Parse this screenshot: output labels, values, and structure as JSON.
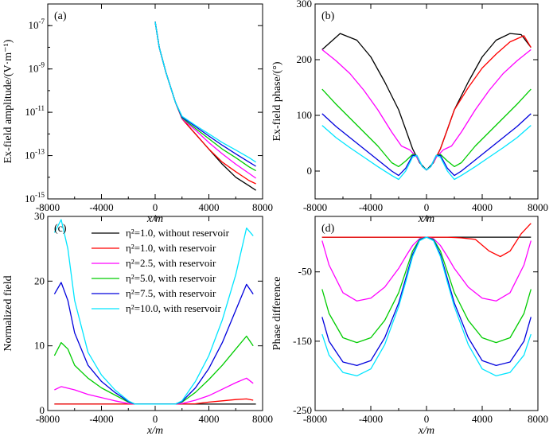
{
  "figure": {
    "xlabel": "x/m",
    "x_ticks": [
      "-8000",
      "-4000",
      "0",
      "4000",
      "8000"
    ],
    "legend": [
      {
        "label": "η²=1.0, without reservoir",
        "color": "#000000"
      },
      {
        "label": "η²=1.0, with reservoir",
        "color": "#ff0000"
      },
      {
        "label": "η²=2.5, with reservoir",
        "color": "#ff00ff"
      },
      {
        "label": "η²=5.0, with reservoir",
        "color": "#00cc00"
      },
      {
        "label": "η²=7.5, with reservoir",
        "color": "#0000dd"
      },
      {
        "label": "η²=10.0, with reservoir",
        "color": "#00e5ff"
      }
    ]
  },
  "chart_data": [
    {
      "panel": "(a)",
      "type": "line",
      "ylabel": "Ex-field amplitude/(V·m⁻¹)",
      "yscale": "log",
      "xlim": [
        -8000,
        8000
      ],
      "ylim": [
        1e-15,
        1e-06
      ],
      "y_ticks": [
        {
          "base": "10",
          "exp": "-7",
          "v": 1e-07
        },
        {
          "base": "10",
          "exp": "-9",
          "v": 1e-09
        },
        {
          "base": "10",
          "exp": "-11",
          "v": 1e-11
        },
        {
          "base": "10",
          "exp": "-13",
          "v": 1e-13
        },
        {
          "base": "10",
          "exp": "-15",
          "v": 1e-15
        }
      ],
      "series": [
        {
          "name": "η²=1.0, without reservoir",
          "color": "#000000",
          "x": [
            0,
            300,
            800,
            1500,
            2000,
            3000,
            4000,
            5000,
            6000,
            7000,
            7500
          ],
          "y": [
            1.5e-07,
            1e-08,
            7e-10,
            3e-11,
            5e-12,
            1e-12,
            2e-13,
            4e-14,
            1e-14,
            4e-15,
            2.5e-15
          ]
        },
        {
          "name": "η²=1.0, with reservoir",
          "color": "#ff0000",
          "x": [
            0,
            300,
            800,
            1500,
            2000,
            3000,
            4000,
            5000,
            6000,
            7000,
            7500
          ],
          "y": [
            1.5e-07,
            1e-08,
            7e-10,
            3e-11,
            5e-12,
            1e-12,
            2e-13,
            5e-14,
            1.8e-14,
            7e-15,
            5e-15
          ]
        },
        {
          "name": "η²=2.5, with reservoir",
          "color": "#ff00ff",
          "x": [
            0,
            300,
            800,
            1500,
            2000,
            3000,
            4000,
            5000,
            6000,
            7000,
            7500
          ],
          "y": [
            1.5e-07,
            1e-08,
            7e-10,
            3e-11,
            5e-12,
            1.5e-12,
            4e-13,
            1.2e-13,
            4e-14,
            1.5e-14,
            9e-15
          ]
        },
        {
          "name": "η²=5.0, with reservoir",
          "color": "#00cc00",
          "x": [
            0,
            300,
            800,
            1500,
            2000,
            3000,
            4000,
            5000,
            6000,
            7000,
            7500
          ],
          "y": [
            1.5e-07,
            1e-08,
            7e-10,
            3e-11,
            5.5e-12,
            1.8e-12,
            6e-13,
            2e-13,
            8e-14,
            3e-14,
            2e-14
          ]
        },
        {
          "name": "η²=7.5, with reservoir",
          "color": "#0000dd",
          "x": [
            0,
            300,
            800,
            1500,
            2000,
            3000,
            4000,
            5000,
            6000,
            7000,
            7500
          ],
          "y": [
            1.5e-07,
            1e-08,
            7e-10,
            3e-11,
            6e-12,
            2.2e-12,
            8e-13,
            3e-13,
            1.2e-13,
            5e-14,
            3.2e-14
          ]
        },
        {
          "name": "η²=10.0, with reservoir",
          "color": "#00e5ff",
          "x": [
            0,
            300,
            800,
            1500,
            2000,
            3000,
            4000,
            5000,
            6000,
            7000,
            7500
          ],
          "y": [
            1.5e-07,
            1e-08,
            7e-10,
            3e-11,
            6.5e-12,
            2.5e-12,
            1e-12,
            4e-13,
            1.8e-13,
            8e-14,
            5e-14
          ]
        }
      ]
    },
    {
      "panel": "(b)",
      "type": "line",
      "ylabel": "Ex-field phase/(°)",
      "yscale": "linear",
      "xlim": [
        -8000,
        8000
      ],
      "ylim": [
        -50,
        300
      ],
      "y_ticks": [
        {
          "label": "300",
          "v": 300
        },
        {
          "label": "200",
          "v": 200
        },
        {
          "label": "100",
          "v": 100
        },
        {
          "label": "0",
          "v": 0
        }
      ],
      "series": [
        {
          "name": "η²=1.0, without reservoir",
          "color": "#000000",
          "right": false,
          "x": [
            -7500,
            -6200,
            -5000,
            -4000,
            -3000,
            -2000,
            -1500,
            -1000,
            -500,
            0,
            500,
            1000,
            1500,
            2000,
            3000,
            4000,
            5000,
            6000,
            6800,
            7500
          ],
          "y": [
            218,
            247,
            235,
            205,
            160,
            110,
            75,
            40,
            15,
            2,
            15,
            40,
            75,
            110,
            160,
            205,
            235,
            247,
            245,
            222
          ]
        },
        {
          "name": "η²=1.0, with reservoir",
          "color": "#ff0000",
          "right": true,
          "x": [
            500,
            1000,
            1500,
            2000,
            3000,
            4000,
            5000,
            6000,
            7000,
            7500
          ],
          "y": [
            15,
            40,
            75,
            110,
            150,
            185,
            210,
            232,
            243,
            222
          ]
        },
        {
          "name": "η²=2.5, with reservoir",
          "color": "#ff00ff",
          "x": [
            -7500,
            -6500,
            -5500,
            -4500,
            -3500,
            -2500,
            -1800,
            -1200,
            -700,
            -300,
            0,
            300,
            700,
            1200,
            1800,
            2500,
            3500,
            4500,
            5500,
            6500,
            7500
          ],
          "y": [
            218,
            198,
            175,
            145,
            110,
            70,
            45,
            38,
            25,
            8,
            2,
            8,
            25,
            38,
            45,
            70,
            110,
            145,
            175,
            198,
            218
          ]
        },
        {
          "name": "η²=5.0, with reservoir",
          "color": "#00cc00",
          "x": [
            -7500,
            -6500,
            -5500,
            -4500,
            -3500,
            -2500,
            -2000,
            -1500,
            -1000,
            -700,
            -300,
            0,
            300,
            700,
            1000,
            1500,
            2000,
            2500,
            3500,
            4500,
            5500,
            6500,
            7500
          ],
          "y": [
            147,
            120,
            95,
            70,
            45,
            15,
            8,
            18,
            30,
            28,
            8,
            2,
            8,
            28,
            30,
            18,
            8,
            15,
            45,
            70,
            95,
            120,
            147
          ]
        },
        {
          "name": "η²=7.5, with reservoir",
          "color": "#0000dd",
          "x": [
            -7500,
            -6500,
            -5500,
            -4500,
            -3500,
            -2500,
            -2000,
            -1500,
            -1000,
            -700,
            -300,
            0,
            300,
            700,
            1000,
            1500,
            2000,
            2500,
            3500,
            4500,
            5500,
            6500,
            7500
          ],
          "y": [
            103,
            80,
            60,
            40,
            20,
            0,
            -8,
            5,
            28,
            28,
            8,
            2,
            8,
            28,
            28,
            5,
            -8,
            0,
            20,
            40,
            60,
            80,
            103
          ]
        },
        {
          "name": "η²=10.0, with reservoir",
          "color": "#00e5ff",
          "x": [
            -7500,
            -6500,
            -5500,
            -4500,
            -3500,
            -2500,
            -2000,
            -1500,
            -1000,
            -700,
            -300,
            0,
            300,
            700,
            1000,
            1500,
            2000,
            2500,
            3500,
            4500,
            5500,
            6500,
            7500
          ],
          "y": [
            82,
            60,
            42,
            25,
            8,
            -8,
            -15,
            0,
            25,
            28,
            8,
            2,
            8,
            28,
            25,
            0,
            -15,
            -8,
            8,
            25,
            42,
            60,
            82
          ]
        }
      ]
    },
    {
      "panel": "(c)",
      "type": "line",
      "ylabel": "Normalized field",
      "yscale": "linear",
      "xlim": [
        -8000,
        8000
      ],
      "ylim": [
        0,
        30
      ],
      "y_ticks": [
        {
          "label": "30",
          "v": 30
        },
        {
          "label": "20",
          "v": 20
        },
        {
          "label": "10",
          "v": 10
        },
        {
          "label": "0",
          "v": 0
        }
      ],
      "series": [
        {
          "name": "η²=1.0, without reservoir",
          "color": "#000000",
          "x": [
            -7500,
            7500
          ],
          "y": [
            1,
            1
          ]
        },
        {
          "name": "η²=1.0, with reservoir",
          "color": "#ff0000",
          "x": [
            -7500,
            -1500,
            1500,
            3000,
            4000,
            5000,
            6000,
            6800,
            7300
          ],
          "y": [
            1,
            1,
            1,
            1.05,
            1.3,
            1.5,
            1.7,
            1.8,
            1.6
          ]
        },
        {
          "name": "η²=2.5, with reservoir",
          "color": "#ff00ff",
          "x": [
            -7500,
            -7000,
            -6000,
            -5000,
            -4000,
            -3000,
            -2000,
            -1500,
            1500,
            2000,
            3000,
            4000,
            5000,
            6000,
            6800,
            7300
          ],
          "y": [
            3.2,
            3.7,
            3.2,
            2.5,
            2,
            1.5,
            1.1,
            1,
            1,
            1.1,
            1.6,
            2.3,
            3.3,
            4.3,
            5,
            4.2
          ]
        },
        {
          "name": "η²=5.0, with reservoir",
          "color": "#00cc00",
          "x": [
            -7500,
            -7000,
            -6500,
            -6000,
            -5000,
            -4000,
            -3000,
            -2000,
            -1500,
            1500,
            2000,
            3000,
            4000,
            5000,
            6000,
            6800,
            7300
          ],
          "y": [
            8.5,
            10.5,
            9.5,
            7,
            5,
            3.5,
            2.4,
            1.3,
            1,
            1,
            1.3,
            2.8,
            4.8,
            7,
            9.5,
            11.5,
            10
          ]
        },
        {
          "name": "η²=7.5, with reservoir",
          "color": "#0000dd",
          "x": [
            -7500,
            -7000,
            -6500,
            -6000,
            -5000,
            -4000,
            -3000,
            -2000,
            -1500,
            1500,
            2000,
            3000,
            4000,
            5000,
            6000,
            6800,
            7300
          ],
          "y": [
            18,
            19.8,
            17,
            12,
            7,
            4.5,
            2.8,
            1.4,
            1,
            1,
            1.4,
            3.5,
            6.5,
            10.5,
            15.5,
            19.5,
            18
          ]
        },
        {
          "name": "η²=10.0, with reservoir",
          "color": "#00e5ff",
          "x": [
            -7500,
            -7000,
            -6500,
            -6000,
            -5000,
            -4000,
            -3000,
            -2000,
            -1500,
            1500,
            2000,
            3000,
            4000,
            5000,
            6000,
            6800,
            7300
          ],
          "y": [
            27.5,
            29.5,
            25,
            17,
            9,
            5.5,
            3.2,
            1.5,
            1,
            1,
            1.5,
            4.5,
            8.5,
            14,
            21,
            28.2,
            27
          ]
        }
      ]
    },
    {
      "panel": "(d)",
      "type": "line",
      "ylabel": "Phase difference",
      "yscale": "linear",
      "xlim": [
        -8000,
        8000
      ],
      "ylim": [
        -250,
        30
      ],
      "y_ticks": [
        {
          "label": "-50",
          "v": -50
        },
        {
          "label": "-150",
          "v": -150
        },
        {
          "label": "-250",
          "v": -250
        }
      ],
      "series": [
        {
          "name": "η²=1.0, without reservoir",
          "color": "#000000",
          "x": [
            -7500,
            7500
          ],
          "y": [
            0,
            0
          ]
        },
        {
          "name": "η²=1.0, with reservoir",
          "color": "#ff0000",
          "x": [
            -7500,
            1500,
            2500,
            3500,
            4500,
            5300,
            6000,
            6800,
            7500
          ],
          "y": [
            0,
            0,
            -1,
            -3,
            -20,
            -28,
            -20,
            5,
            20
          ]
        },
        {
          "name": "η²=2.5, with reservoir",
          "color": "#ff00ff",
          "x": [
            -7500,
            -7000,
            -6000,
            -5000,
            -4000,
            -3000,
            -2000,
            -1500,
            -1000,
            -500,
            0,
            500,
            1000,
            1500,
            2000,
            3000,
            4000,
            5000,
            6000,
            7000,
            7500
          ],
          "y": [
            -5,
            -40,
            -80,
            -92,
            -88,
            -72,
            -45,
            -28,
            -12,
            -2,
            0,
            -2,
            -12,
            -28,
            -45,
            -72,
            -88,
            -92,
            -80,
            -40,
            -5
          ]
        },
        {
          "name": "η²=5.0, with reservoir",
          "color": "#00cc00",
          "x": [
            -7500,
            -7000,
            -6000,
            -5000,
            -4000,
            -3000,
            -2000,
            -1500,
            -1000,
            -500,
            0,
            500,
            1000,
            1500,
            2000,
            3000,
            4000,
            5000,
            6000,
            7000,
            7500
          ],
          "y": [
            -75,
            -110,
            -145,
            -152,
            -145,
            -120,
            -80,
            -50,
            -20,
            -3,
            0,
            -3,
            -20,
            -50,
            -80,
            -120,
            -145,
            -152,
            -145,
            -110,
            -75
          ]
        },
        {
          "name": "η²=7.5, with reservoir",
          "color": "#0000dd",
          "x": [
            -7500,
            -7000,
            -6000,
            -5000,
            -4000,
            -3000,
            -2000,
            -1500,
            -1000,
            -500,
            0,
            500,
            1000,
            1500,
            2000,
            3000,
            4000,
            5000,
            6000,
            7000,
            7500
          ],
          "y": [
            -115,
            -150,
            -180,
            -185,
            -178,
            -145,
            -95,
            -60,
            -25,
            -4,
            0,
            -4,
            -25,
            -60,
            -95,
            -145,
            -178,
            -185,
            -180,
            -150,
            -115
          ]
        },
        {
          "name": "η²=10.0, with reservoir",
          "color": "#00e5ff",
          "x": [
            -7500,
            -7000,
            -6000,
            -5000,
            -4000,
            -3000,
            -2000,
            -1500,
            -1000,
            -500,
            0,
            500,
            1000,
            1500,
            2000,
            3000,
            4000,
            5000,
            6000,
            7000,
            7500
          ],
          "y": [
            -140,
            -170,
            -195,
            -200,
            -190,
            -155,
            -100,
            -65,
            -28,
            -5,
            0,
            -5,
            -28,
            -65,
            -100,
            -155,
            -190,
            -200,
            -195,
            -170,
            -140
          ]
        }
      ]
    }
  ]
}
